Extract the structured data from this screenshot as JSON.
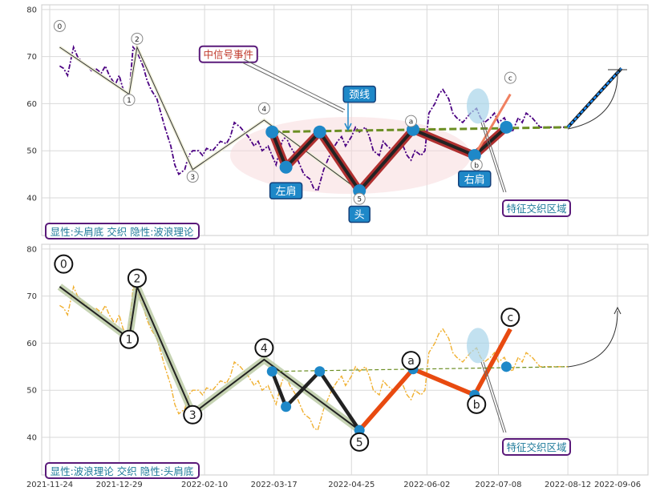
{
  "chart_data": [
    {
      "type": "line",
      "panel": "top",
      "ylim": [
        32,
        81
      ],
      "yticks": [
        40,
        50,
        60,
        70,
        80
      ],
      "grid": true,
      "legend_label": "显性:头肩底 交织 隐性:波浪理论",
      "series": [
        {
          "role": "price",
          "style": "dash-dot",
          "color": "#4B0082",
          "x": [
            "2021-11-29",
            "2021-12-01",
            "2021-12-03",
            "2021-12-06",
            "2021-12-08",
            "2021-12-10",
            "2021-12-13",
            "2021-12-15",
            "2021-12-17",
            "2021-12-20",
            "2021-12-22",
            "2021-12-24",
            "2021-12-27",
            "2021-12-29",
            "2021-12-31",
            "2022-01-03",
            "2022-01-05",
            "2022-01-07",
            "2022-01-10",
            "2022-01-12",
            "2022-01-14",
            "2022-01-17",
            "2022-01-19",
            "2022-01-21",
            "2022-01-24",
            "2022-01-26",
            "2022-01-28",
            "2022-01-31",
            "2022-02-02",
            "2022-02-04",
            "2022-02-07",
            "2022-02-09",
            "2022-02-11",
            "2022-02-14",
            "2022-02-16",
            "2022-02-18",
            "2022-02-21",
            "2022-02-23",
            "2022-02-25",
            "2022-02-28",
            "2022-03-02",
            "2022-03-04",
            "2022-03-07",
            "2022-03-09",
            "2022-03-11",
            "2022-03-14",
            "2022-03-16",
            "2022-03-18",
            "2022-03-21",
            "2022-03-23",
            "2022-03-25",
            "2022-03-28",
            "2022-03-30",
            "2022-04-01",
            "2022-04-04",
            "2022-04-06",
            "2022-04-08",
            "2022-04-11",
            "2022-04-13",
            "2022-04-15",
            "2022-04-18",
            "2022-04-20",
            "2022-04-22",
            "2022-04-25",
            "2022-04-27",
            "2022-04-29",
            "2022-05-02",
            "2022-05-04",
            "2022-05-06",
            "2022-05-09",
            "2022-05-11",
            "2022-05-13",
            "2022-05-16",
            "2022-05-18",
            "2022-05-20",
            "2022-05-23",
            "2022-05-25",
            "2022-05-27",
            "2022-05-30",
            "2022-06-01",
            "2022-06-03",
            "2022-06-06",
            "2022-06-08",
            "2022-06-10",
            "2022-06-13",
            "2022-06-15",
            "2022-06-17",
            "2022-06-20",
            "2022-06-22",
            "2022-06-24",
            "2022-06-27",
            "2022-06-29",
            "2022-07-01",
            "2022-07-04",
            "2022-07-06",
            "2022-07-08",
            "2022-07-11",
            "2022-07-13",
            "2022-07-15",
            "2022-07-18",
            "2022-07-20",
            "2022-07-22",
            "2022-07-25",
            "2022-07-27",
            "2022-07-29",
            "2022-08-01",
            "2022-08-03",
            "2022-08-05",
            "2022-08-08",
            "2022-08-10",
            "2022-08-12"
          ],
          "y": [
            68,
            67.5,
            66,
            72,
            70,
            69,
            68,
            67,
            67.5,
            66.5,
            68,
            66,
            64,
            66,
            63,
            62,
            72,
            71,
            68,
            65,
            63,
            61,
            58,
            55,
            51,
            47,
            45,
            46,
            49,
            50,
            50,
            49,
            50.5,
            50,
            51,
            52,
            51.5,
            53,
            56,
            55,
            54,
            53,
            51,
            52,
            50,
            51,
            49,
            47,
            52,
            53,
            51,
            49,
            47,
            45,
            44,
            42,
            41.5,
            46,
            48,
            50,
            52,
            53,
            51,
            53,
            55,
            54,
            55,
            53,
            50,
            49,
            52,
            51,
            50,
            51,
            52,
            49,
            48,
            50,
            49,
            50,
            58,
            60,
            62,
            63,
            61,
            58,
            57,
            56,
            57,
            58,
            59,
            57,
            56,
            57,
            58,
            56,
            57,
            55,
            54,
            57,
            56,
            58,
            57,
            56,
            55,
            55,
            55,
            55,
            55,
            55,
            55
          ]
        },
        {
          "role": "zigzag",
          "style": "solid-thin",
          "color": "#222222",
          "x": [
            "2021-11-29",
            "2022-01-03",
            "2022-01-07",
            "2022-02-04",
            "2022-03-12",
            "2022-04-29"
          ],
          "y": [
            72,
            62,
            72,
            46,
            56.5,
            41.5
          ]
        },
        {
          "role": "head-and-shoulders",
          "style": "thick",
          "color": "#333333",
          "x": [
            "2022-03-16",
            "2022-03-23",
            "2022-04-09",
            "2022-04-29",
            "2022-05-26",
            "2022-06-26",
            "2022-07-12"
          ],
          "y": [
            54,
            46.5,
            54,
            41.5,
            54.5,
            49,
            55
          ]
        },
        {
          "role": "neckline",
          "style": "dashed-green",
          "color": "#6B8E23",
          "x": [
            "2022-03-16",
            "2022-08-12"
          ],
          "y": [
            54,
            55
          ]
        },
        {
          "role": "projection",
          "style": "blue-arrow",
          "color": "#1E90FF",
          "x": [
            "2022-08-12",
            "2022-09-08"
          ],
          "y": [
            55,
            67.5
          ]
        },
        {
          "role": "breakout",
          "style": "orange",
          "color": "#F08060",
          "x": [
            "2022-06-26",
            "2022-07-14"
          ],
          "y": [
            49,
            62
          ]
        }
      ],
      "annotations": [
        {
          "text": "0",
          "x": "2021-11-29",
          "y": 76.5,
          "kind": "wave-small"
        },
        {
          "text": "1",
          "x": "2021-01-03",
          "y": 60.8,
          "kind": "wave-small"
        },
        {
          "text": "2",
          "x": "2022-01-07",
          "y": 73.8,
          "kind": "wave-small"
        },
        {
          "text": "3",
          "x": "2022-02-04",
          "y": 44.5,
          "kind": "wave-small"
        },
        {
          "text": "4",
          "x": "2022-03-12",
          "y": 59,
          "kind": "wave-small"
        },
        {
          "text": "5",
          "x": "2022-04-29",
          "y": 39.8,
          "kind": "wave-small"
        },
        {
          "text": "a",
          "x": "2022-05-25",
          "y": 56.3,
          "kind": "wave-small"
        },
        {
          "text": "b",
          "x": "2022-06-27",
          "y": 47,
          "kind": "wave-small"
        },
        {
          "text": "c",
          "x": "2022-07-14",
          "y": 65.5,
          "kind": "wave-small"
        },
        {
          "text": "中信号事件",
          "x": "2022-02-22",
          "y": 70.5,
          "kind": "callout-red"
        },
        {
          "text": "颈线",
          "x": "2022-04-29",
          "y": 62,
          "kind": "box-blue"
        },
        {
          "text": "左肩",
          "x": "2022-03-23",
          "y": 41.5,
          "kind": "box-blue"
        },
        {
          "text": "头",
          "x": "2022-04-29",
          "y": 36.5,
          "kind": "box-blue"
        },
        {
          "text": "右肩",
          "x": "2022-06-26",
          "y": 44,
          "kind": "box-blue"
        },
        {
          "text": "特征交织区域",
          "x": "2022-08-01",
          "y": 37.8,
          "kind": "callout-purple"
        }
      ]
    },
    {
      "type": "line",
      "panel": "bottom",
      "ylim": [
        32,
        81
      ],
      "yticks": [
        40,
        50,
        60,
        70,
        80
      ],
      "grid": true,
      "legend_label": "显性:波浪理论 交织 隐性:头肩底",
      "x_tick_labels": [
        "2021-11-24",
        "2021-12-29",
        "2022-02-10",
        "2022-03-17",
        "2022-04-25",
        "2022-06-02",
        "2022-07-08",
        "2022-08-12",
        "2022-09-06"
      ],
      "series": [
        {
          "role": "price",
          "style": "dash-dot",
          "color": "#F0B030",
          "same_as": "top.price"
        },
        {
          "role": "zigzag",
          "style": "thick-black",
          "color": "#222222",
          "x": [
            "2021-11-29",
            "2022-01-03",
            "2022-01-07",
            "2022-02-04",
            "2022-03-12",
            "2022-04-29"
          ],
          "y": [
            72,
            61,
            72,
            45,
            56.5,
            41.5
          ]
        },
        {
          "role": "head-and-shoulders",
          "style": "thick-black",
          "color": "#222222",
          "x": [
            "2022-03-16",
            "2022-03-23",
            "2022-04-09",
            "2022-04-29"
          ],
          "y": [
            54,
            46.5,
            54,
            41.5
          ]
        },
        {
          "role": "wave-abc",
          "style": "thick-orange",
          "color": "#E84A10",
          "x": [
            "2022-04-29",
            "2022-05-26",
            "2022-06-26",
            "2022-07-14"
          ],
          "y": [
            41.5,
            54.5,
            49,
            63
          ]
        },
        {
          "role": "neckline",
          "style": "dashed-green",
          "color": "#6B8E23",
          "x": [
            "2022-03-16",
            "2022-08-12"
          ],
          "y": [
            54,
            55
          ]
        }
      ],
      "annotations": [
        {
          "text": "0",
          "x": "2021-12-01",
          "y": 76.8,
          "kind": "wave-big"
        },
        {
          "text": "1",
          "x": "2022-01-03",
          "y": 60.8,
          "kind": "wave-big"
        },
        {
          "text": "2",
          "x": "2022-01-07",
          "y": 73.8,
          "kind": "wave-big"
        },
        {
          "text": "3",
          "x": "2022-02-04",
          "y": 44.8,
          "kind": "wave-big"
        },
        {
          "text": "4",
          "x": "2022-03-12",
          "y": 59,
          "kind": "wave-big"
        },
        {
          "text": "5",
          "x": "2022-04-29",
          "y": 39,
          "kind": "wave-big"
        },
        {
          "text": "a",
          "x": "2022-05-25",
          "y": 56.3,
          "kind": "wave-big"
        },
        {
          "text": "b",
          "x": "2022-06-27",
          "y": 47,
          "kind": "wave-big"
        },
        {
          "text": "c",
          "x": "2022-07-14",
          "y": 65.5,
          "kind": "wave-big"
        },
        {
          "text": "特征交织区域",
          "x": "2022-08-01",
          "y": 37.8,
          "kind": "callout-purple"
        }
      ]
    }
  ]
}
